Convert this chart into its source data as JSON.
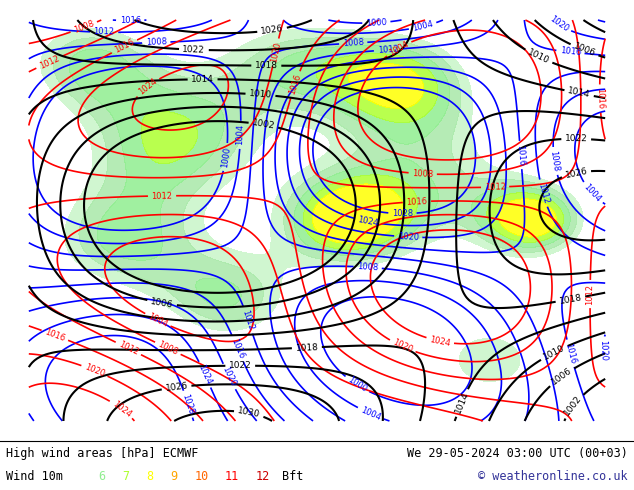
{
  "title_left": "High wind areas [hPa] ECMWF",
  "title_right": "We 29-05-2024 03:00 UTC (00+03)",
  "subtitle_left": "Wind 10m",
  "subtitle_right": "© weatheronline.co.uk",
  "bft_values": [
    "6",
    "7",
    "8",
    "9",
    "10",
    "11",
    "12"
  ],
  "bft_colors": [
    "#90ee90",
    "#adff2f",
    "#ffff00",
    "#ffa500",
    "#ff6600",
    "#ff0000",
    "#cc0000"
  ],
  "bft_label": "Bft",
  "map_bg_color": "#e8e8f0",
  "footer_bg": "#ffffff",
  "figsize": [
    6.34,
    4.9
  ],
  "dpi": 100,
  "contour_color_blue": "#0000ff",
  "contour_color_red": "#ff0000",
  "contour_color_black": "#000000",
  "land_color_light": "#d0e8c0"
}
